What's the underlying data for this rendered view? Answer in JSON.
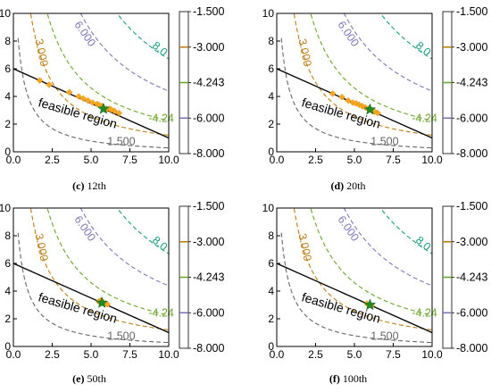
{
  "chart_data": [
    {
      "type": "contour",
      "caption_letter": "(c)",
      "caption_text": "12th",
      "xlim": [
        0,
        10
      ],
      "ylim": [
        0,
        10
      ],
      "xticks": [
        "0.0",
        "2.5",
        "5.0",
        "7.5",
        "10.0"
      ],
      "yticks": [
        "0",
        "2",
        "4",
        "6",
        "8",
        "10"
      ],
      "contour_labels": [
        "3.000",
        "6.000",
        "8.0",
        "-4.24",
        "1.500"
      ],
      "region_label": "feasible region",
      "constraint_line": {
        "x": [
          0,
          10
        ],
        "y": [
          6,
          1
        ]
      },
      "samples": [
        [
          1.7,
          5.15
        ],
        [
          2.3,
          4.85
        ],
        [
          3.6,
          4.3
        ],
        [
          4.2,
          4.0
        ],
        [
          4.8,
          3.7
        ],
        [
          5.1,
          3.55
        ],
        [
          5.4,
          3.45
        ],
        [
          5.7,
          3.3
        ],
        [
          6.0,
          3.1
        ],
        [
          6.2,
          3.1
        ],
        [
          6.5,
          2.95
        ],
        [
          6.8,
          2.8
        ],
        [
          5.55,
          3.35
        ],
        [
          4.5,
          3.85
        ],
        [
          6.3,
          3.05
        ]
      ],
      "optimum": [
        5.8,
        3.1
      ],
      "colorbar_ticks": [
        "-1.500",
        "-3.000",
        "-4.243",
        "-6.000",
        "-8.000"
      ]
    },
    {
      "type": "contour",
      "caption_letter": "(d)",
      "caption_text": "20th",
      "xlim": [
        0,
        10
      ],
      "ylim": [
        0,
        10
      ],
      "xticks": [
        "0.0",
        "2.5",
        "5.0",
        "7.5",
        "10.0"
      ],
      "yticks": [
        "0",
        "2",
        "4",
        "6",
        "8",
        "10"
      ],
      "contour_labels": [
        "3.000",
        "6.000",
        "8.0",
        "-4.24",
        "1.500"
      ],
      "region_label": "feasible region",
      "constraint_line": {
        "x": [
          0,
          10
        ],
        "y": [
          6,
          1
        ]
      },
      "samples": [
        [
          3.6,
          4.2
        ],
        [
          4.2,
          3.95
        ],
        [
          4.6,
          3.7
        ],
        [
          4.9,
          3.55
        ],
        [
          5.1,
          3.5
        ],
        [
          5.3,
          3.4
        ],
        [
          5.5,
          3.3
        ],
        [
          5.7,
          3.2
        ],
        [
          5.9,
          3.1
        ],
        [
          6.1,
          3.0
        ],
        [
          6.3,
          2.9
        ],
        [
          6.5,
          2.8
        ]
      ],
      "optimum": [
        6.0,
        3.05
      ],
      "colorbar_ticks": [
        "-1.500",
        "-3.000",
        "-4.243",
        "-6.000",
        "-8.000"
      ]
    },
    {
      "type": "contour",
      "caption_letter": "(e)",
      "caption_text": "50th",
      "xlim": [
        0,
        10
      ],
      "ylim": [
        0,
        10
      ],
      "xticks": [
        "0.0",
        "2.5",
        "5.0",
        "7.5",
        "10.0"
      ],
      "yticks": [
        "0",
        "2",
        "4",
        "6",
        "8",
        "10"
      ],
      "contour_labels": [
        "3.000",
        "6.000",
        "8.0",
        "-4.24",
        "1.500"
      ],
      "region_label": "feasible region",
      "constraint_line": {
        "x": [
          0,
          10
        ],
        "y": [
          6,
          1
        ]
      },
      "samples": [
        [
          5.5,
          3.25
        ],
        [
          5.7,
          3.15
        ],
        [
          5.9,
          3.1
        ],
        [
          6.05,
          3.05
        ],
        [
          5.65,
          3.35
        ]
      ],
      "optimum": [
        5.7,
        3.15
      ],
      "colorbar_ticks": [
        "-1.500",
        "-3.000",
        "-4.243",
        "-6.000",
        "-8.000"
      ]
    },
    {
      "type": "contour",
      "caption_letter": "(f)",
      "caption_text": "100th",
      "xlim": [
        0,
        10
      ],
      "ylim": [
        0,
        10
      ],
      "xticks": [
        "0.0",
        "2.5",
        "5.0",
        "7.5",
        "10.0"
      ],
      "yticks": [
        "0",
        "2",
        "4",
        "6",
        "8",
        "10"
      ],
      "contour_labels": [
        "3.000",
        "6.000",
        "8.0",
        "-4.24",
        "1.500"
      ],
      "region_label": "feasible region",
      "constraint_line": {
        "x": [
          0,
          10
        ],
        "y": [
          6,
          1
        ]
      },
      "samples": [
        [
          5.8,
          3.1
        ],
        [
          6.0,
          3.0
        ],
        [
          6.1,
          2.95
        ]
      ],
      "optimum": [
        6.0,
        3.0
      ],
      "colorbar_ticks": [
        "-1.500",
        "-3.000",
        "-4.243",
        "-6.000",
        "-8.000"
      ]
    }
  ],
  "colors": {
    "contour_1500": "#666666",
    "contour_3000": "#c07c10",
    "contour_4243": "#6aa82a",
    "contour_6000": "#7c79b8",
    "contour_8000": "#18a07c",
    "samples": "#f5a623",
    "optimum": "#1f8a2a",
    "constraint": "#000000"
  }
}
